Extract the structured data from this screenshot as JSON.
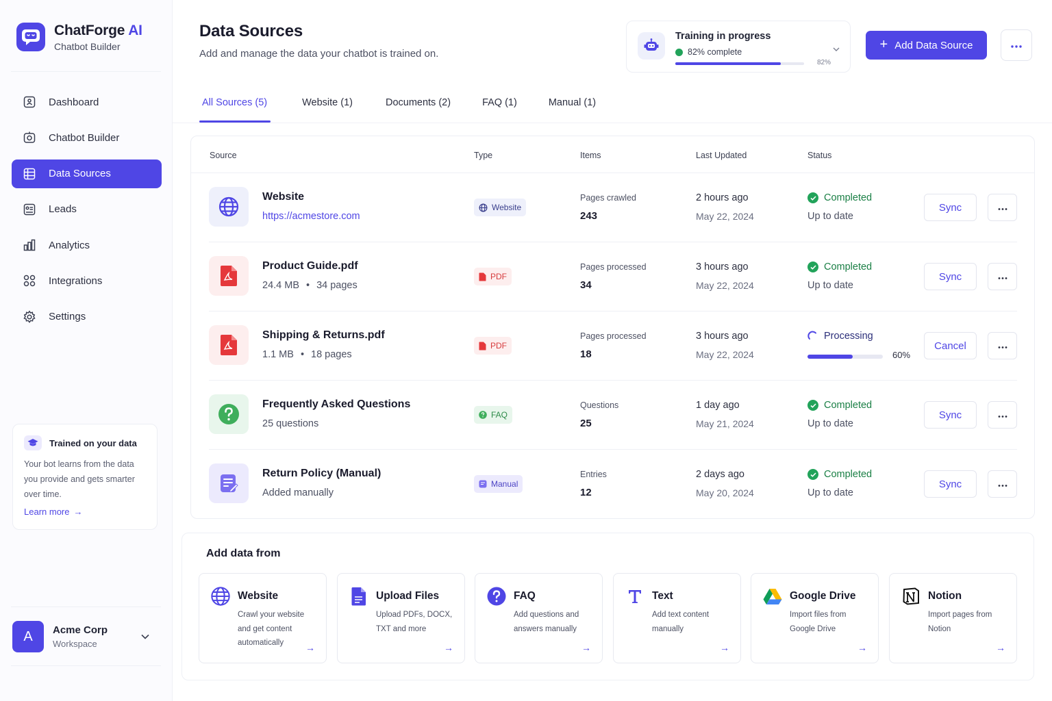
{
  "brand": {
    "name": "ChatForge",
    "accent": "AI",
    "subtitle": "Chatbot Builder",
    "color": "#4f46e5"
  },
  "nav": {
    "items": [
      {
        "label": "Dashboard",
        "icon": "dashboard-icon"
      },
      {
        "label": "Chatbot Builder",
        "icon": "chatbot-builder-icon"
      },
      {
        "label": "Data Sources",
        "icon": "database-icon",
        "active": true
      },
      {
        "label": "Leads",
        "icon": "leads-icon"
      },
      {
        "label": "Analytics",
        "icon": "analytics-icon"
      },
      {
        "label": "Integrations",
        "icon": "integrations-icon"
      },
      {
        "label": "Settings",
        "icon": "settings-icon"
      }
    ]
  },
  "info_card": {
    "title": "Trained on your data",
    "text": "Your bot learns from the data you provide and gets smarter over time.",
    "link": "Learn more"
  },
  "workspace": {
    "initial": "A",
    "name": "Acme Corp",
    "label": "Workspace"
  },
  "header": {
    "title": "Data Sources",
    "subtitle": "Add and manage the data your chatbot is trained on.",
    "add_button": "Add Data Source"
  },
  "training": {
    "title": "Training in progress",
    "status": "82% complete",
    "progress": 0.82,
    "percent_label": "82%"
  },
  "tabs": [
    {
      "label": "All Sources (5)",
      "active": true
    },
    {
      "label": "Website (1)"
    },
    {
      "label": "Documents (2)"
    },
    {
      "label": "FAQ (1)"
    },
    {
      "label": "Manual (1)"
    }
  ],
  "table": {
    "headers": {
      "source": "Source",
      "type": "Type",
      "items": "Items",
      "updated": "Last Updated",
      "status": "Status"
    },
    "rows": [
      {
        "name": "Website",
        "sub": "https://acmestore.com",
        "type": "Website",
        "items_label": "Pages crawled",
        "items_value": "243",
        "updated": "2 hours ago",
        "date": "May 22, 2024",
        "status": "Completed",
        "status_sub": "Up to date",
        "action": "Sync"
      },
      {
        "name": "Product Guide.pdf",
        "size": "24.4 MB",
        "pages": "34 pages",
        "type": "PDF",
        "items_label": "Pages processed",
        "items_value": "34",
        "updated": "3 hours ago",
        "date": "May 22, 2024",
        "status": "Completed",
        "status_sub": "Up to date",
        "action": "Sync"
      },
      {
        "name": "Shipping & Returns.pdf",
        "size": "1.1 MB",
        "pages": "18 pages",
        "type": "PDF",
        "items_label": "Pages processed",
        "items_value": "18",
        "updated": "3 hours ago",
        "date": "May 22, 2024",
        "status": "Processing",
        "progress": 0.6,
        "progress_label": "60%",
        "action": "Cancel"
      },
      {
        "name": "Frequently Asked Questions",
        "sub": "25 questions",
        "type": "FAQ",
        "items_label": "Questions",
        "items_value": "25",
        "updated": "1 day ago",
        "date": "May 21, 2024",
        "status": "Completed",
        "status_sub": "Up to date",
        "action": "Sync"
      },
      {
        "name": "Return Policy (Manual)",
        "sub": "Added manually",
        "type": "Manual",
        "items_label": "Entries",
        "items_value": "12",
        "updated": "2 days ago",
        "date": "May 20, 2024",
        "status": "Completed",
        "status_sub": "Up to date",
        "action": "Sync"
      }
    ]
  },
  "add_data": {
    "title": "Add data from",
    "options": [
      {
        "title": "Website",
        "desc": "Crawl your website and get content automatically",
        "icon": "globe-icon"
      },
      {
        "title": "Upload Files",
        "desc": "Upload PDFs, DOCX, TXT and more",
        "icon": "file-icon"
      },
      {
        "title": "FAQ",
        "desc": "Add questions and answers manually",
        "icon": "question-icon"
      },
      {
        "title": "Text",
        "desc": "Add text content manually",
        "icon": "text-icon"
      },
      {
        "title": "Google Drive",
        "desc": "Import files from Google Drive",
        "icon": "google-drive-icon"
      },
      {
        "title": "Notion",
        "desc": "Import pages from Notion",
        "icon": "notion-icon"
      }
    ]
  },
  "colors": {
    "accent": "#4f46e5",
    "success": "#22a35a",
    "pdf": "#e5383b",
    "faq": "#3fae5c"
  }
}
